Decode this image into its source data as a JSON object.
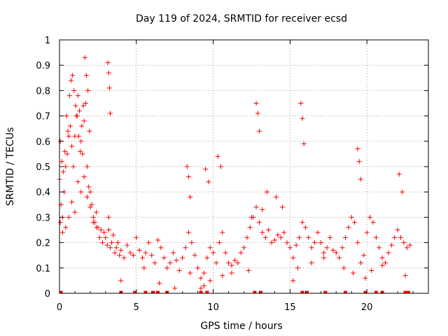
{
  "chart_data": {
    "type": "scatter",
    "title": "Day 119 of 2024, SRMTID for receiver ecsd",
    "xlabel": "GPS time / hours",
    "ylabel": "SRMTID / TECUs",
    "xlim": [
      0,
      24
    ],
    "ylim": [
      0,
      1
    ],
    "xticks": [
      0,
      5,
      10,
      15,
      20
    ],
    "xtick_labels": [
      "0",
      "5",
      "10",
      "15",
      "20"
    ],
    "yticks": [
      0,
      0.1,
      0.2,
      0.3,
      0.4,
      0.5,
      0.6,
      0.7,
      0.8,
      0.9,
      1
    ],
    "ytick_labels": [
      "0",
      "0.1",
      "0.2",
      "0.3",
      "0.4",
      "0.5",
      "0.6",
      "0.7",
      "0.8",
      "0.9",
      "1"
    ],
    "grid": true,
    "marker": "+",
    "color": "#ff0000",
    "series": [
      {
        "name": "SRMTID",
        "x": [
          0.0,
          0.1,
          0.2,
          0.3,
          0.4,
          0.5,
          0.6,
          0.7,
          0.8,
          0.9,
          1.0,
          1.1,
          1.2,
          1.3,
          1.4,
          1.5,
          1.6,
          1.7,
          1.8,
          1.9,
          2.0,
          2.1,
          2.2,
          2.3,
          2.4,
          2.5,
          2.6,
          2.7,
          2.8,
          2.9,
          3.0,
          3.1,
          3.2,
          3.3,
          3.4,
          3.5,
          3.6,
          3.7,
          3.8,
          3.9,
          4.0,
          4.2,
          4.4,
          4.6,
          4.8,
          5.0,
          5.2,
          5.4,
          5.6,
          5.8,
          6.0,
          6.2,
          6.4,
          6.6,
          6.8,
          7.0,
          7.2,
          7.4,
          7.6,
          7.8,
          8.0,
          8.2,
          8.4,
          8.6,
          8.8,
          9.0,
          9.2,
          9.4,
          9.6,
          9.8,
          10.0,
          10.2,
          10.4,
          10.6,
          10.8,
          11.0,
          11.2,
          11.4,
          11.6,
          11.8,
          12.0,
          12.2,
          12.4,
          12.6,
          12.8,
          13.0,
          13.2,
          13.4,
          13.6,
          13.8,
          14.0,
          14.2,
          14.4,
          14.6,
          14.8,
          15.0,
          15.2,
          15.4,
          15.6,
          15.8,
          16.0,
          16.2,
          16.4,
          16.6,
          16.8,
          17.0,
          17.2,
          17.4,
          17.6,
          17.8,
          18.0,
          18.2,
          18.4,
          18.6,
          18.8,
          19.0,
          19.2,
          19.4,
          19.6,
          19.8,
          20.0,
          20.2,
          20.4,
          20.6,
          20.8,
          21.0,
          21.2,
          21.4,
          21.6,
          21.8,
          22.0,
          22.2,
          22.4,
          22.6,
          22.8,
          0.05,
          0.15,
          0.25,
          0.35,
          0.45,
          0.55,
          0.65,
          0.75,
          0.85,
          0.95,
          1.05,
          1.15,
          1.25,
          1.35,
          1.45,
          1.55,
          1.65,
          1.75,
          1.85,
          1.95,
          3.15,
          3.2,
          3.25,
          3.3,
          8.3,
          8.4,
          8.5,
          9.5,
          9.7,
          10.3,
          10.5,
          12.8,
          12.9,
          13.0,
          15.7,
          15.8,
          15.9,
          19.4,
          19.5,
          19.6,
          22.1,
          22.3,
          0.05,
          0.2,
          0.4,
          0.6,
          0.8,
          1.0,
          1.2,
          1.4,
          1.6,
          1.8,
          2.0,
          2.2,
          2.4,
          3.2,
          4.0,
          5.5,
          6.5,
          7.5,
          8.5,
          9.2,
          9.4,
          9.8,
          10.6,
          11.2,
          12.3,
          12.5,
          13.2,
          13.5,
          14.1,
          14.5,
          15.2,
          15.5,
          16.4,
          17.2,
          18.5,
          19.1,
          19.9,
          20.3,
          21.0,
          22.5
        ],
        "y": [
          0.45,
          0.35,
          0.3,
          0.4,
          0.5,
          0.55,
          0.62,
          0.66,
          0.58,
          0.5,
          0.62,
          0.7,
          0.78,
          0.72,
          0.6,
          0.55,
          0.68,
          0.75,
          0.5,
          0.42,
          0.4,
          0.35,
          0.3,
          0.28,
          0.32,
          0.26,
          0.22,
          0.25,
          0.2,
          0.24,
          0.22,
          0.19,
          0.25,
          0.18,
          0.2,
          0.23,
          0.16,
          0.18,
          0.2,
          0.15,
          0.17,
          0.14,
          0.19,
          0.16,
          0.15,
          0.22,
          0.17,
          0.14,
          0.16,
          0.2,
          0.15,
          0.12,
          0.21,
          0.18,
          0.14,
          0.1,
          0.12,
          0.16,
          0.13,
          0.09,
          0.14,
          0.18,
          0.24,
          0.2,
          0.15,
          0.1,
          0.06,
          0.08,
          0.14,
          0.18,
          0.16,
          0.12,
          0.2,
          0.24,
          0.16,
          0.12,
          0.11,
          0.13,
          0.12,
          0.16,
          0.18,
          0.22,
          0.26,
          0.3,
          0.34,
          0.28,
          0.24,
          0.22,
          0.25,
          0.2,
          0.21,
          0.23,
          0.22,
          0.24,
          0.2,
          0.18,
          0.14,
          0.19,
          0.22,
          0.28,
          0.26,
          0.22,
          0.18,
          0.2,
          0.24,
          0.2,
          0.16,
          0.18,
          0.22,
          0.17,
          0.16,
          0.14,
          0.18,
          0.22,
          0.26,
          0.3,
          0.28,
          0.2,
          0.12,
          0.15,
          0.24,
          0.3,
          0.28,
          0.22,
          0.18,
          0.14,
          0.12,
          0.16,
          0.19,
          0.22,
          0.25,
          0.22,
          0.2,
          0.18,
          0.19,
          0.6,
          0.52,
          0.48,
          0.56,
          0.7,
          0.64,
          0.78,
          0.84,
          0.86,
          0.8,
          0.74,
          0.7,
          0.62,
          0.56,
          0.66,
          0.74,
          0.93,
          0.86,
          0.8,
          0.64,
          0.91,
          0.87,
          0.81,
          0.71,
          0.5,
          0.46,
          0.38,
          0.49,
          0.44,
          0.54,
          0.5,
          0.75,
          0.71,
          0.64,
          0.75,
          0.69,
          0.59,
          0.57,
          0.52,
          0.45,
          0.47,
          0.4,
          0.28,
          0.24,
          0.26,
          0.3,
          0.36,
          0.32,
          0.44,
          0.4,
          0.46,
          0.38,
          0.34,
          0.28,
          0.26,
          0.3,
          0.05,
          0.1,
          0.04,
          0.02,
          0.08,
          0.02,
          0.03,
          0.05,
          0.07,
          0.08,
          0.09,
          0.3,
          0.33,
          0.4,
          0.38,
          0.34,
          0.05,
          0.1,
          0.12,
          0.14,
          0.1,
          0.08,
          0.06,
          0.09,
          0.11,
          0.07
        ]
      }
    ],
    "zero_markers_x": [
      0.1,
      4.0,
      4.9,
      5.6,
      6.1,
      6.4,
      7.0,
      9.2,
      9.6,
      12.7,
      13.1,
      15.8,
      16.1,
      17.3,
      18.6,
      19.9,
      20.6,
      21.0,
      22.5,
      22.7
    ]
  }
}
